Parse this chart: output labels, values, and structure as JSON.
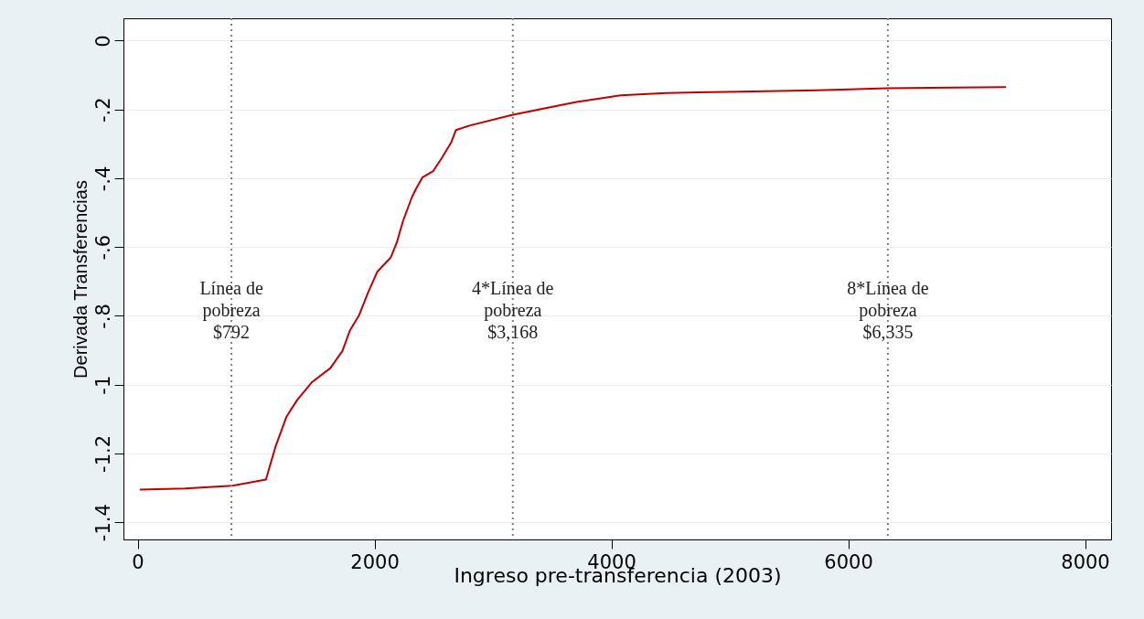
{
  "chart_data": {
    "type": "line",
    "xlabel": "Ingreso pre-transferencia (2003)",
    "ylabel": "Derivada Transferencias",
    "x": [
      18,
      400,
      797,
      1083,
      1167,
      1257,
      1346,
      1474,
      1627,
      1729,
      1793,
      1870,
      1946,
      2023,
      2138,
      2189,
      2240,
      2317,
      2355,
      2406,
      2496,
      2572,
      2649,
      2687,
      2802,
      3160,
      3389,
      3696,
      4079,
      4462,
      4973,
      5739,
      6335,
      7333
    ],
    "series": [
      {
        "color": "#c00000",
        "values": [
          -1.305,
          -1.302,
          -1.294,
          -1.276,
          -1.177,
          -1.093,
          -1.045,
          -0.992,
          -0.952,
          -0.902,
          -0.842,
          -0.798,
          -0.732,
          -0.672,
          -0.63,
          -0.586,
          -0.525,
          -0.454,
          -0.428,
          -0.397,
          -0.379,
          -0.339,
          -0.295,
          -0.26,
          -0.247,
          -0.216,
          -0.2,
          -0.179,
          -0.159,
          -0.152,
          -0.149,
          -0.144,
          -0.138,
          -0.135
        ]
      }
    ],
    "xlim": [
      -120,
      8220
    ],
    "xticks": [
      0,
      2000,
      4000,
      6000,
      8000
    ],
    "ylim": [
      -1.45,
      0.065
    ],
    "yticks": [
      0,
      {
        "value": -0.2,
        "label": "-.2"
      },
      {
        "value": -0.4,
        "label": "-.4"
      },
      {
        "value": -0.6,
        "label": "-.6"
      },
      {
        "value": -0.8,
        "label": "-.8"
      },
      -1,
      {
        "value": -1.2,
        "label": "-1.2"
      },
      {
        "value": -1.4,
        "label": "-1.4"
      }
    ],
    "grid": "y",
    "line_style": "solid",
    "marker": "none",
    "ref_lines": [
      {
        "axis": "x",
        "value": 792,
        "label": "Línea de\npobreza\n$792",
        "color": "#7f7f7f",
        "line_style": "dotted"
      },
      {
        "axis": "x",
        "value": 3168,
        "label": "4*Línea de\npobreza\n$3,168",
        "color": "#7f7f7f",
        "line_style": "dotted"
      },
      {
        "axis": "x",
        "value": 6335,
        "label": "8*Línea de\npobreza\n$6,335",
        "color": "#7f7f7f",
        "line_style": "dotted"
      }
    ]
  }
}
